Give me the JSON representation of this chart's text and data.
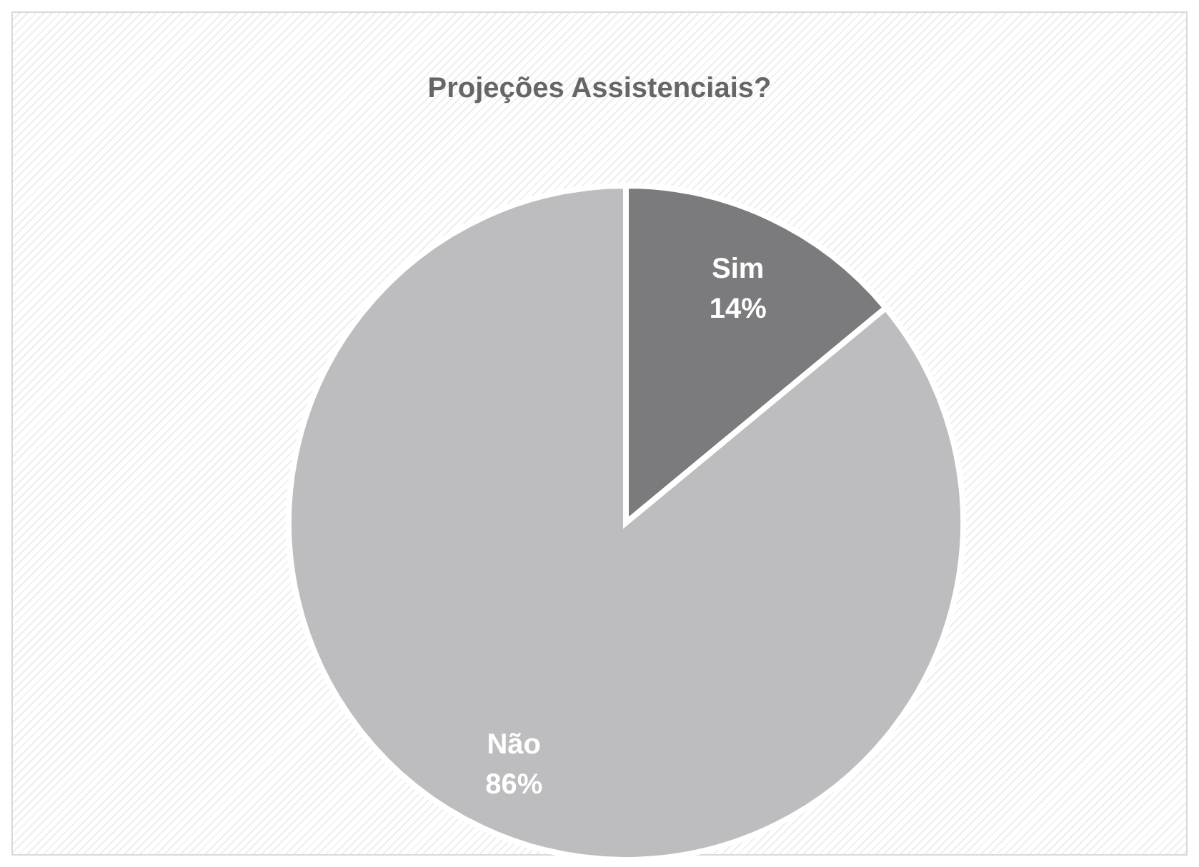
{
  "chart_data": {
    "type": "pie",
    "title": "Projeções Assistenciais?",
    "categories": [
      "Sim",
      "Não"
    ],
    "values": [
      14,
      86
    ],
    "value_labels": [
      "14%",
      "86%"
    ],
    "colors": [
      "#7b7b7d",
      "#bdbdbf"
    ]
  }
}
